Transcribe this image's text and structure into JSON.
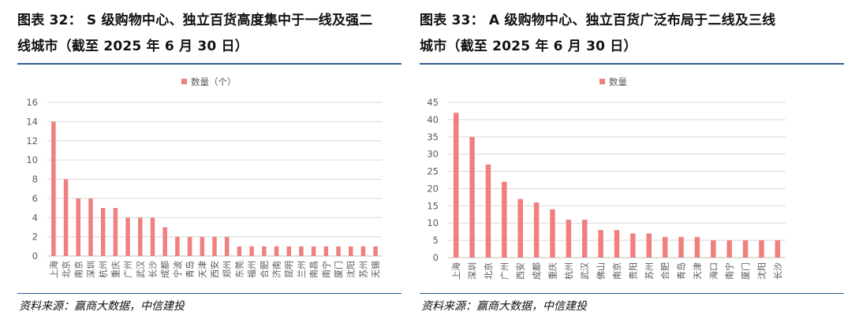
{
  "left": {
    "title_line1": "图表 32： S 级购物中心、独立百货高度集中于一线及强二",
    "title_line2": "线城市（截至 2025 年 6 月 30 日）",
    "source": "资料来源：赢商大数据，中信建投"
  },
  "right": {
    "title_line1": "图表 33： A 级购物中心、独立百货广泛布局于二线及三线",
    "title_line2": "城市（截至 2025 年 6 月 30 日）",
    "source": "资料来源：赢商大数据，中信建投"
  },
  "colors": {
    "bar": "#f08080",
    "rule": "#2e5d8f",
    "grid": "#d9d9d9",
    "text": "#595959"
  },
  "chart_data": [
    {
      "type": "bar",
      "title": "",
      "legend": "数量（个）",
      "xlabel": "",
      "ylabel": "",
      "ylim": [
        0,
        16
      ],
      "yticks": [
        0,
        2,
        4,
        6,
        8,
        10,
        12,
        14,
        16
      ],
      "categories": [
        "上海",
        "北京",
        "南京",
        "深圳",
        "杭州",
        "重庆",
        "广州",
        "武汉",
        "长沙",
        "成都",
        "宁波",
        "青岛",
        "天津",
        "西安",
        "郑州",
        "东莞",
        "福州",
        "合肥",
        "济南",
        "昆明",
        "兰州",
        "南昌",
        "南宁",
        "厦门",
        "沈阳",
        "苏州",
        "无锡"
      ],
      "values": [
        14,
        8,
        6,
        6,
        5,
        5,
        4,
        4,
        4,
        3,
        2,
        2,
        2,
        2,
        2,
        1,
        1,
        1,
        1,
        1,
        1,
        1,
        1,
        1,
        1,
        1,
        1
      ]
    },
    {
      "type": "bar",
      "title": "",
      "legend": "数量",
      "xlabel": "",
      "ylabel": "",
      "ylim": [
        0,
        45
      ],
      "yticks": [
        0,
        5,
        10,
        15,
        20,
        25,
        30,
        35,
        40,
        45
      ],
      "categories": [
        "上海",
        "深圳",
        "北京",
        "广州",
        "西安",
        "成都",
        "重庆",
        "杭州",
        "武汉",
        "佛山",
        "南京",
        "贵阳",
        "苏州",
        "合肥",
        "青岛",
        "天津",
        "海口",
        "南宁",
        "厦门",
        "沈阳",
        "长沙"
      ],
      "values": [
        42,
        35,
        27,
        22,
        17,
        16,
        14,
        11,
        11,
        8,
        8,
        7,
        7,
        6,
        6,
        6,
        5,
        5,
        5,
        5,
        5
      ]
    }
  ]
}
